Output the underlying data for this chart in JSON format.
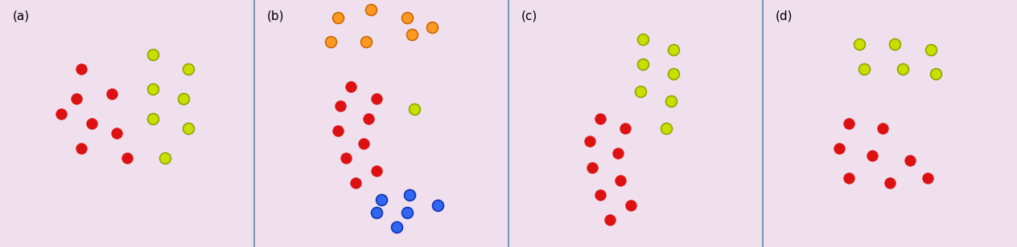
{
  "background_color": "#f0e0ee",
  "divider_color": "#7799bb",
  "label_fontsize": 11,
  "labels": [
    "(a)",
    "(b)",
    "(c)",
    "(d)"
  ],
  "panels": [
    {
      "name": "a",
      "red_points": [
        [
          0.32,
          0.72
        ],
        [
          0.44,
          0.62
        ],
        [
          0.3,
          0.6
        ],
        [
          0.24,
          0.54
        ],
        [
          0.36,
          0.5
        ],
        [
          0.46,
          0.46
        ],
        [
          0.32,
          0.4
        ],
        [
          0.5,
          0.36
        ]
      ],
      "green_points": [
        [
          0.6,
          0.78
        ],
        [
          0.74,
          0.72
        ],
        [
          0.6,
          0.64
        ],
        [
          0.72,
          0.6
        ],
        [
          0.6,
          0.52
        ],
        [
          0.74,
          0.48
        ],
        [
          0.65,
          0.36
        ]
      ],
      "orange_points": [],
      "blue_points": []
    },
    {
      "name": "b",
      "red_points": [
        [
          0.38,
          0.65
        ],
        [
          0.48,
          0.6
        ],
        [
          0.34,
          0.57
        ],
        [
          0.45,
          0.52
        ],
        [
          0.33,
          0.47
        ],
        [
          0.43,
          0.42
        ],
        [
          0.36,
          0.36
        ],
        [
          0.48,
          0.31
        ],
        [
          0.4,
          0.26
        ]
      ],
      "green_points": [
        [
          0.63,
          0.56
        ]
      ],
      "orange_points": [
        [
          0.33,
          0.93
        ],
        [
          0.46,
          0.96
        ],
        [
          0.6,
          0.93
        ],
        [
          0.7,
          0.89
        ],
        [
          0.3,
          0.83
        ],
        [
          0.44,
          0.83
        ],
        [
          0.62,
          0.86
        ]
      ],
      "blue_points": [
        [
          0.5,
          0.19
        ],
        [
          0.61,
          0.21
        ],
        [
          0.48,
          0.14
        ],
        [
          0.6,
          0.14
        ],
        [
          0.72,
          0.17
        ],
        [
          0.56,
          0.08
        ]
      ]
    },
    {
      "name": "c",
      "red_points": [
        [
          0.36,
          0.52
        ],
        [
          0.46,
          0.48
        ],
        [
          0.32,
          0.43
        ],
        [
          0.43,
          0.38
        ],
        [
          0.33,
          0.32
        ],
        [
          0.44,
          0.27
        ],
        [
          0.36,
          0.21
        ],
        [
          0.48,
          0.17
        ],
        [
          0.4,
          0.11
        ]
      ],
      "green_points": [
        [
          0.53,
          0.84
        ],
        [
          0.65,
          0.8
        ],
        [
          0.53,
          0.74
        ],
        [
          0.65,
          0.7
        ],
        [
          0.52,
          0.63
        ],
        [
          0.64,
          0.59
        ],
        [
          0.62,
          0.48
        ]
      ],
      "orange_points": [],
      "blue_points": []
    },
    {
      "name": "d",
      "red_points": [
        [
          0.34,
          0.5
        ],
        [
          0.47,
          0.48
        ],
        [
          0.3,
          0.4
        ],
        [
          0.43,
          0.37
        ],
        [
          0.58,
          0.35
        ],
        [
          0.34,
          0.28
        ],
        [
          0.5,
          0.26
        ],
        [
          0.65,
          0.28
        ]
      ],
      "green_points": [
        [
          0.38,
          0.82
        ],
        [
          0.52,
          0.82
        ],
        [
          0.66,
          0.8
        ],
        [
          0.4,
          0.72
        ],
        [
          0.55,
          0.72
        ],
        [
          0.68,
          0.7
        ]
      ],
      "orange_points": [],
      "blue_points": []
    }
  ],
  "red_color": "#dd1111",
  "green_color": "#ccdd00",
  "green_edge": "#88aa00",
  "orange_color": "#ff9922",
  "orange_edge": "#cc6600",
  "blue_color": "#3366ee",
  "blue_edge": "#1133bb",
  "marker_size": 100,
  "marker_lw": 1.2
}
